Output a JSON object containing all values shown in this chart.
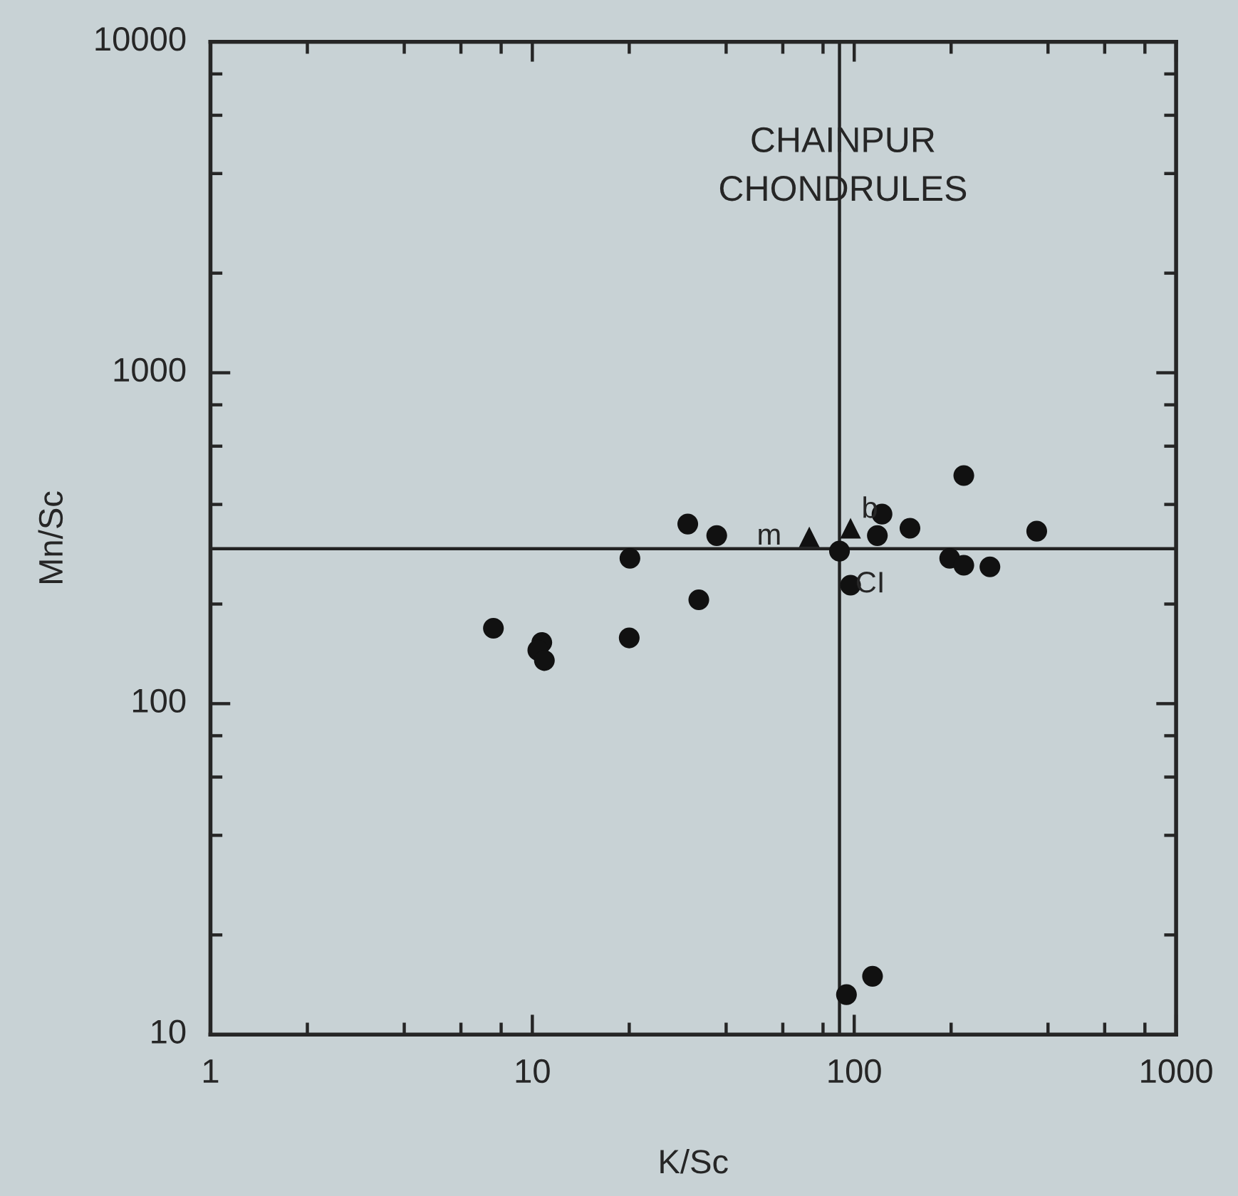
{
  "chart_data": {
    "type": "scatter",
    "title": "CHAINPUR\nCHONDRULES",
    "xlabel": "K/Sc",
    "ylabel": "Mn/Sc",
    "log": "xy",
    "xlim": [
      1,
      1000
    ],
    "xticks": [
      1,
      10,
      100,
      1000
    ],
    "ylim": [
      10,
      10000
    ],
    "yticks": [
      10,
      100,
      1000,
      10000
    ],
    "series": [
      {
        "marker": "circle",
        "color": "#111111",
        "x": [
          30.4,
          37.4,
          20.1,
          32.9,
          7.57,
          10.7,
          10.4,
          10.9,
          20.0,
          90,
          97.4,
          122,
          118,
          149,
          219,
          369,
          198,
          219,
          264,
          94.6,
          114
        ],
        "values": [
          349,
          322,
          275,
          206,
          169,
          153,
          145,
          135,
          158,
          289,
          228,
          374,
          322,
          339,
          489,
          332,
          275,
          262,
          259,
          13.2,
          15.0
        ]
      },
      {
        "marker": "triangle",
        "color": "#111111",
        "x": [
          72.5,
          97.4
        ],
        "values": [
          319,
          339
        ]
      }
    ],
    "ref_lines": [
      {
        "axis": "x",
        "value": 90
      },
      {
        "axis": "y",
        "value": 294
      }
    ],
    "annotations": [
      {
        "text": "m",
        "x": 72.5,
        "y": 319
      },
      {
        "text": "b",
        "x": 122,
        "y": 374
      },
      {
        "text": "CI",
        "x": 90,
        "y": 289
      }
    ],
    "grid": false,
    "legend": false
  }
}
